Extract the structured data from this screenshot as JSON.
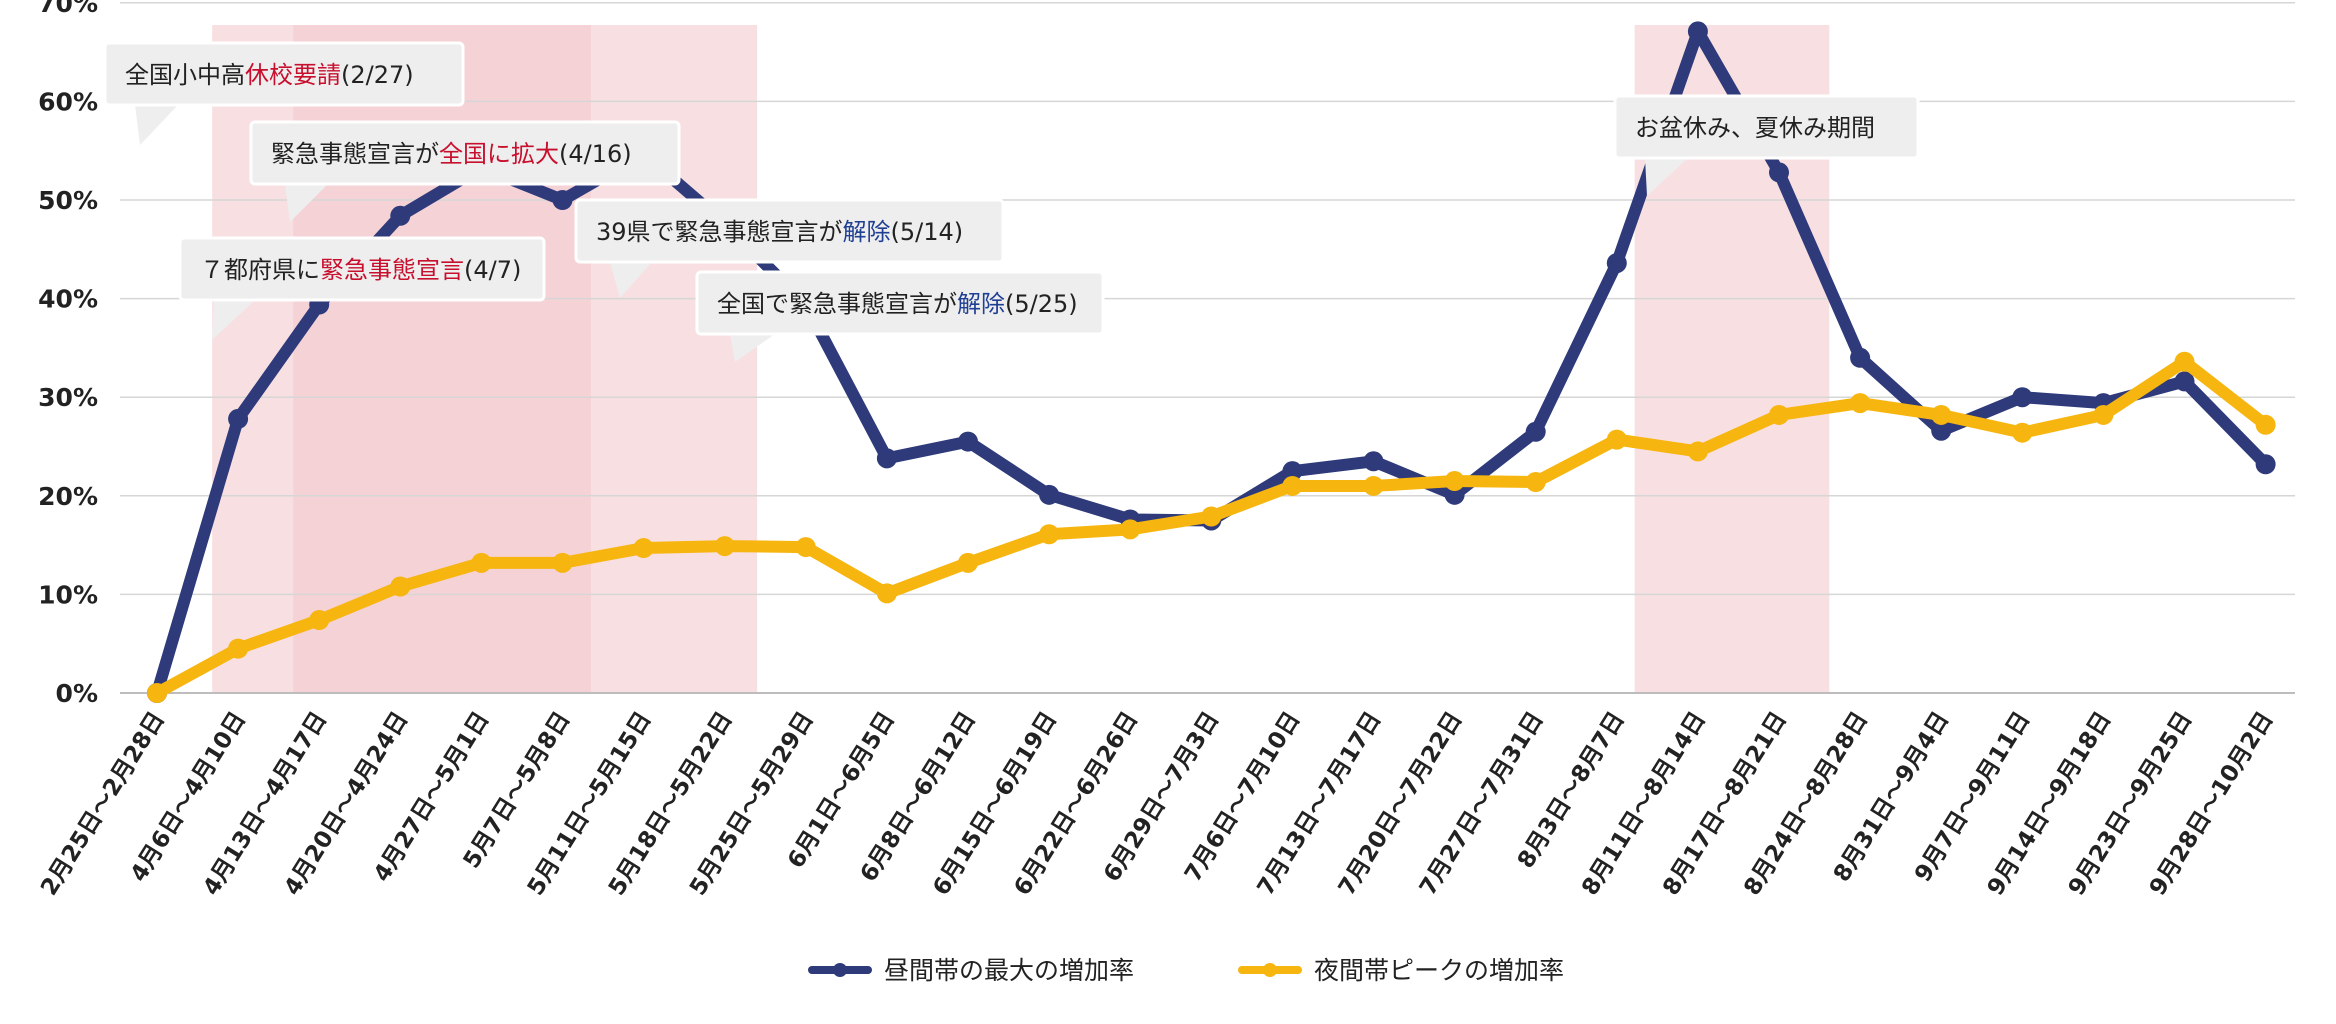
{
  "colors": {
    "daytime": "#2e3a7a",
    "night": "#f7b50f",
    "shade": "#f2c6cb",
    "red_text": "#c8102e",
    "blue_text": "#1f3f93",
    "gridline": "#d6d6d6",
    "callout_bg": "#eeeeee",
    "callout_border": "#ffffff"
  },
  "chart_data": {
    "type": "line",
    "categories": [
      "2月25日～2月28日",
      "4月6日～4月10日",
      "4月13日～4月17日",
      "4月20日～4月24日",
      "4月27日～5月1日",
      "5月7日～5月8日",
      "5月11日～5月15日",
      "5月18日～5月22日",
      "5月25日～5月29日",
      "6月1日～6月5日",
      "6月8日～6月12日",
      "6月15日～6月19日",
      "6月22日～6月26日",
      "6月29日～7月3日",
      "7月6日～7月10日",
      "7月13日～7月17日",
      "7月20日～7月22日",
      "7月27日～7月31日",
      "8月3日～8月7日",
      "8月11日～8月14日",
      "8月17日～8月21日",
      "8月24日～8月28日",
      "8月31日～9月4日",
      "9月7日～9月11日",
      "9月14日～9月18日",
      "9月23日～9月25日",
      "9月28日～10月2日"
    ],
    "series": [
      {
        "name": "昼間帯の最大の増加率",
        "color": "#2e3a7a",
        "values": [
          0,
          27.8,
          39.4,
          48.4,
          53.3,
          50.0,
          54.7,
          47.6,
          39.4,
          23.8,
          25.5,
          20.1,
          17.6,
          17.5,
          22.5,
          23.5,
          20.1,
          26.5,
          43.6,
          67.1,
          52.8,
          34.0,
          26.6,
          30.0,
          29.4,
          31.6,
          23.2
        ]
      },
      {
        "name": "夜間帯ピークの増加率",
        "color": "#f7b50f",
        "values": [
          0,
          4.5,
          7.4,
          10.8,
          13.2,
          13.2,
          14.7,
          14.9,
          14.8,
          10.1,
          13.2,
          16.1,
          16.6,
          17.9,
          21.0,
          21.0,
          21.5,
          21.4,
          25.7,
          24.5,
          28.2,
          29.4,
          28.2,
          26.4,
          28.2,
          33.6,
          27.2
        ]
      }
    ],
    "ylim": [
      0,
      70
    ],
    "yticks": [
      "0%",
      "10%",
      "20%",
      "30%",
      "40%",
      "50%",
      "60%",
      "70%"
    ],
    "grid": "horizontal",
    "legend_position": "bottom-center",
    "shaded_periods": [
      {
        "from": 0.68,
        "to": 5.35,
        "opacity": 0.55
      },
      {
        "from": 1.68,
        "to": 7.4,
        "opacity": 0.55
      },
      {
        "from": 18.22,
        "to": 20.62,
        "opacity": 0.55
      }
    ]
  },
  "annotations": [
    {
      "pre": "全国小中高",
      "hl": "休校要請",
      "post": "(2/27)",
      "hl_color": "red"
    },
    {
      "pre": "緊急事態宣言が",
      "hl": "全国に拡大",
      "post": "(4/16)",
      "hl_color": "red"
    },
    {
      "pre": "７都府県に",
      "hl": "緊急事態宣言",
      "post": "(4/7)",
      "hl_color": "red"
    },
    {
      "pre": "39県で緊急事態宣言が",
      "hl": "解除",
      "post": "(5/14)",
      "hl_color": "blue"
    },
    {
      "pre": "全国で緊急事態宣言が",
      "hl": "解除",
      "post": "(5/25)",
      "hl_color": "blue"
    },
    {
      "pre": "お盆休み、夏休み期間",
      "hl": "",
      "post": "",
      "hl_color": "red"
    }
  ]
}
